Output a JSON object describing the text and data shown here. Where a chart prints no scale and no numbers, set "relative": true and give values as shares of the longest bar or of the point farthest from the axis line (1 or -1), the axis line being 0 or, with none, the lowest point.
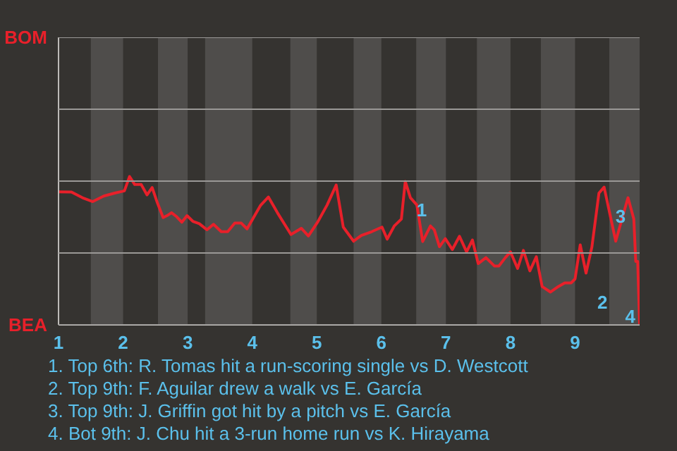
{
  "chart_data": {
    "type": "line",
    "xlim": [
      1,
      10
    ],
    "relative": true,
    "xticks": [
      1,
      2,
      3,
      4,
      5,
      6,
      7,
      8,
      9
    ],
    "ref_lines": [
      {
        "axis": "y",
        "value": 1.938,
        "label": "BOM",
        "color": "#9a9896"
      },
      {
        "axis": "y",
        "value": 1.453,
        "color": "#9a9896"
      },
      {
        "axis": "y",
        "value": 0.969,
        "color": "#9a9896"
      },
      {
        "axis": "y",
        "value": 0.484,
        "color": "#9a9896"
      },
      {
        "axis": "y",
        "value": 0,
        "label": "BEA",
        "color": "#9a9896"
      }
    ],
    "series": [
      {
        "color": "#e8202a",
        "x": [
          1,
          1.2,
          1.37,
          1.53,
          1.7,
          1.87,
          2.02,
          2.1,
          2.18,
          2.28,
          2.37,
          2.45,
          2.53,
          2.62,
          2.68,
          2.75,
          2.83,
          2.91,
          2.99,
          3.08,
          3.18,
          3.3,
          3.4,
          3.52,
          3.62,
          3.73,
          3.83,
          3.92,
          4.02,
          4.13,
          4.25,
          4.39,
          4.6,
          4.76,
          4.87,
          5.02,
          5.16,
          5.3,
          5.41,
          5.57,
          5.69,
          5.85,
          6.01,
          6.09,
          6.2,
          6.31,
          6.37,
          6.45,
          6.55,
          6.64,
          6.76,
          6.82,
          6.9,
          6.99,
          7.1,
          7.21,
          7.32,
          7.41,
          7.5,
          7.62,
          7.75,
          7.82,
          7.92,
          8,
          8.11,
          8.2,
          8.3,
          8.4,
          8.49,
          8.62,
          8.74,
          8.84,
          8.94,
          9,
          9.08,
          9.17,
          9.26,
          9.37,
          9.45,
          9.63,
          9.82,
          9.91,
          9.94,
          9.97,
          10
        ],
        "values": [
          0.897,
          0.895,
          0.857,
          0.831,
          0.868,
          0.888,
          0.903,
          1,
          0.946,
          0.946,
          0.876,
          0.926,
          0.824,
          0.723,
          0.736,
          0.756,
          0.729,
          0.692,
          0.736,
          0.698,
          0.682,
          0.641,
          0.678,
          0.628,
          0.628,
          0.686,
          0.686,
          0.647,
          0.723,
          0.806,
          0.862,
          0.756,
          0.609,
          0.651,
          0.599,
          0.698,
          0.808,
          0.942,
          0.659,
          0.564,
          0.603,
          0.628,
          0.659,
          0.578,
          0.667,
          0.713,
          0.967,
          0.857,
          0.808,
          0.562,
          0.667,
          0.641,
          0.527,
          0.581,
          0.508,
          0.597,
          0.492,
          0.572,
          0.413,
          0.453,
          0.397,
          0.397,
          0.453,
          0.492,
          0.38,
          0.502,
          0.364,
          0.459,
          0.258,
          0.221,
          0.258,
          0.283,
          0.283,
          0.31,
          0.539,
          0.349,
          0.523,
          0.888,
          0.928,
          0.564,
          0.857,
          0.713,
          0.428,
          0.428,
          0
        ]
      }
    ],
    "bands": [
      {
        "axis": "x",
        "from": 1.5,
        "to": 2,
        "color": "#4f4d4b"
      },
      {
        "axis": "x",
        "from": 2.54,
        "to": 3,
        "color": "#4f4d4b"
      },
      {
        "axis": "x",
        "from": 3.27,
        "to": 4,
        "color": "#4f4d4b"
      },
      {
        "axis": "x",
        "from": 4.59,
        "to": 5,
        "color": "#4f4d4b"
      },
      {
        "axis": "x",
        "from": 5.57,
        "to": 6,
        "color": "#4f4d4b"
      },
      {
        "axis": "x",
        "from": 6.54,
        "to": 7,
        "color": "#4f4d4b"
      },
      {
        "axis": "x",
        "from": 7.48,
        "to": 8,
        "color": "#4f4d4b"
      },
      {
        "axis": "x",
        "from": 8.47,
        "to": 9,
        "color": "#4f4d4b"
      },
      {
        "axis": "x",
        "from": 9.53,
        "to": 10,
        "color": "#4f4d4b"
      }
    ],
    "annotations": [
      {
        "text": "1",
        "x": 6.37,
        "y": 0.967
      },
      {
        "text": "2",
        "x": 9.17,
        "y": 0.349
      },
      {
        "text": "3",
        "x": 9.45,
        "y": 0.928
      },
      {
        "text": "4",
        "x": 10,
        "y": 0.291
      },
      "1. Top 6th: R. Tomas hit a run-scoring single vs D. Westcott",
      "2. Top 9th: F. Aguilar drew a walk vs E. García",
      "3. Top 9th: J. Griffin got hit by a pitch vs E. García",
      "4. Bot 9th: J. Chu hit a 3-run home run vs K. Hirayama"
    ]
  }
}
